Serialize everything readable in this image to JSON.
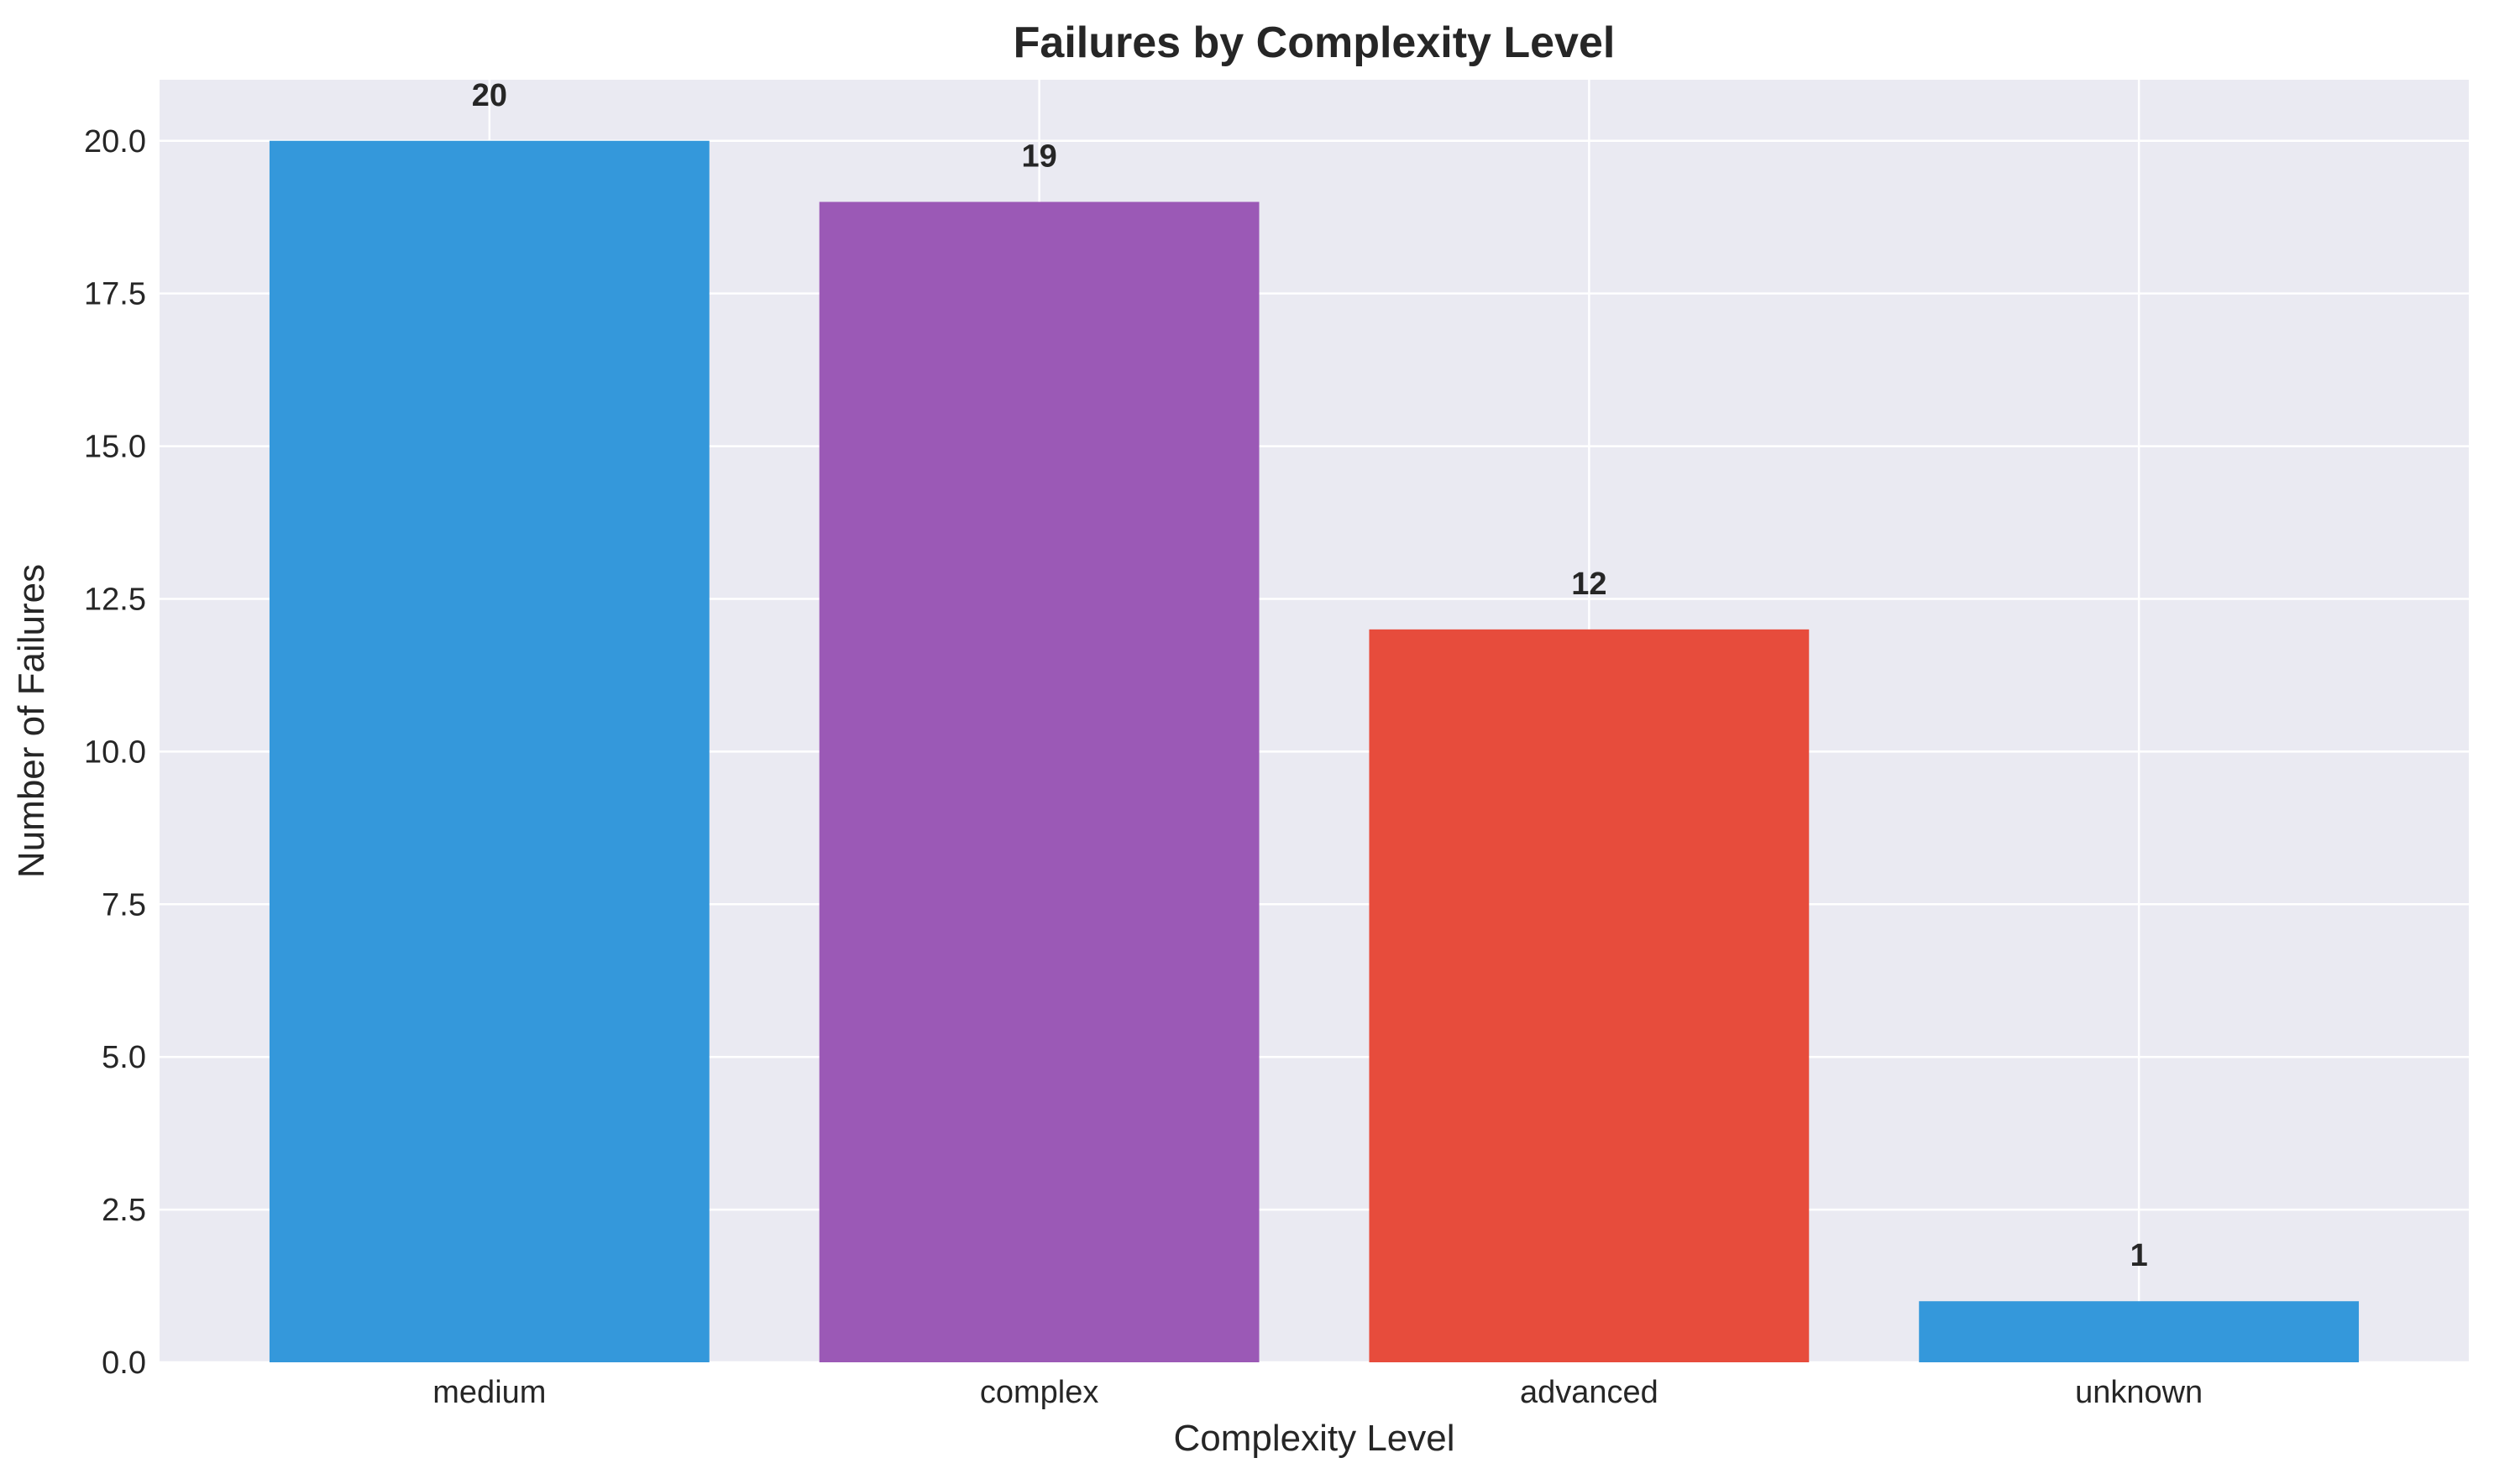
{
  "chart_data": {
    "type": "bar",
    "title": "Failures by Complexity Level",
    "xlabel": "Complexity Level",
    "ylabel": "Number of Failures",
    "categories": [
      "medium",
      "complex",
      "advanced",
      "unknown"
    ],
    "values": [
      20,
      19,
      12,
      1
    ],
    "bar_colors": [
      "#3498db",
      "#9b59b6",
      "#e74c3c",
      "#3498db"
    ],
    "ylim": [
      0,
      21
    ],
    "yticks": [
      0,
      2.5,
      5,
      7.5,
      10,
      12.5,
      15,
      17.5,
      20
    ],
    "ytick_labels": [
      "0.0",
      "2.5",
      "5.0",
      "7.5",
      "10.0",
      "12.5",
      "15.0",
      "17.5",
      "20.0"
    ],
    "grid": true,
    "background_color": "#eaeaf2",
    "grid_color": "#ffffff",
    "data_labels": [
      "20",
      "19",
      "12",
      "1"
    ]
  }
}
